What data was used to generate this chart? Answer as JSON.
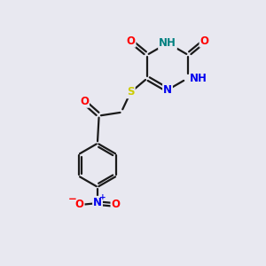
{
  "bg_color": "#e8e8f0",
  "bond_color": "#1a1a1a",
  "bond_width": 1.6,
  "atom_colors": {
    "O": "#ff0000",
    "N": "#0000ee",
    "S": "#cccc00",
    "NH": "#008080",
    "Nminus": "#0000ee"
  },
  "font_size": 8.5,
  "ring_r": 0.88,
  "benz_r": 0.82
}
